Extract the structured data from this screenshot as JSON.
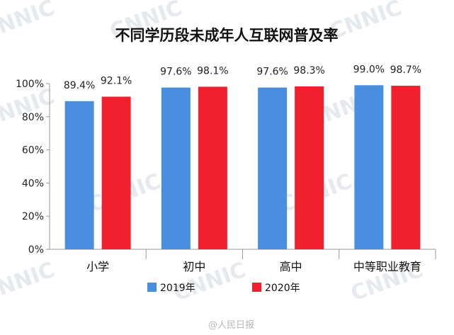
{
  "chart_data": {
    "type": "bar",
    "title": "不同学历段未成年人互联网普及率",
    "categories": [
      "小学",
      "初中",
      "高中",
      "中等职业教育"
    ],
    "series": [
      {
        "name": "2019年",
        "values": [
          89.4,
          97.6,
          97.6,
          99.0
        ],
        "labels": [
          "89.4%",
          "97.6%",
          "97.6%",
          "99.0%"
        ],
        "color": "#4a8ee0"
      },
      {
        "name": "2020年",
        "values": [
          92.1,
          98.1,
          98.3,
          98.7
        ],
        "labels": [
          "92.1%",
          "98.1%",
          "98.3%",
          "98.7%"
        ],
        "color": "#f0202f"
      }
    ],
    "ylim": [
      0,
      100
    ],
    "yticks": [
      "0%",
      "20%",
      "40%",
      "60%",
      "80%",
      "100%"
    ],
    "xlabel": "",
    "ylabel": "",
    "legend_position": "bottom",
    "grid": false
  },
  "watermark": "CNNIC",
  "credit": "@人民日报"
}
